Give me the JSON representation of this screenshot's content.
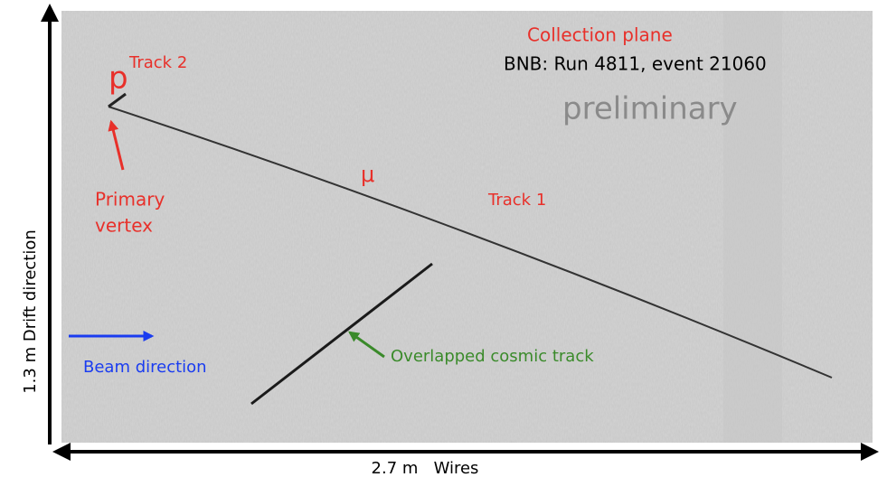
{
  "labels": {
    "collection_plane": "Collection plane",
    "run_info": "BNB: Run 4811, event 21060",
    "preliminary": "preliminary",
    "proton": "p",
    "track_2": "Track 2",
    "primary_vertex": [
      "Primary",
      "vertex"
    ],
    "muon": "μ",
    "track_1": "Track 1",
    "beam_direction": "Beam direction",
    "cosmic": "Overlapped cosmic track",
    "y_axis": "1.3 m Drift direction",
    "x_axis": "2.7 m   Wires"
  }
}
